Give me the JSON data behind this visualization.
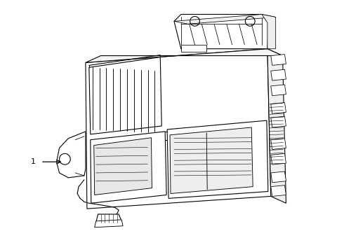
{
  "background_color": "#ffffff",
  "line_color": "#000000",
  "line_width": 0.8,
  "label": "1",
  "figsize": [
    4.9,
    3.6
  ],
  "dpi": 100
}
